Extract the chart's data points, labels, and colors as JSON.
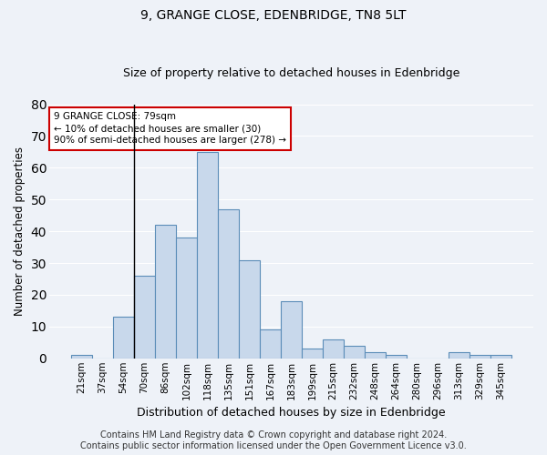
{
  "title": "9, GRANGE CLOSE, EDENBRIDGE, TN8 5LT",
  "subtitle": "Size of property relative to detached houses in Edenbridge",
  "xlabel": "Distribution of detached houses by size in Edenbridge",
  "ylabel": "Number of detached properties",
  "categories": [
    "21sqm",
    "37sqm",
    "54sqm",
    "70sqm",
    "86sqm",
    "102sqm",
    "118sqm",
    "135sqm",
    "151sqm",
    "167sqm",
    "183sqm",
    "199sqm",
    "215sqm",
    "232sqm",
    "248sqm",
    "264sqm",
    "280sqm",
    "296sqm",
    "313sqm",
    "329sqm",
    "345sqm"
  ],
  "values": [
    1,
    0,
    13,
    26,
    42,
    38,
    65,
    47,
    31,
    9,
    18,
    3,
    6,
    4,
    2,
    1,
    0,
    0,
    2,
    1,
    1
  ],
  "bar_color": "#c8d8eb",
  "bar_edge_color": "#5b8db8",
  "annotation_line1": "9 GRANGE CLOSE: 79sqm",
  "annotation_line2": "← 10% of detached houses are smaller (30)",
  "annotation_line3": "90% of semi-detached houses are larger (278) →",
  "annotation_box_color": "white",
  "annotation_box_edge_color": "#cc0000",
  "vline_x_index": 2.5,
  "ylim": [
    0,
    80
  ],
  "yticks": [
    0,
    10,
    20,
    30,
    40,
    50,
    60,
    70,
    80
  ],
  "background_color": "#eef2f8",
  "grid_color": "white",
  "title_fontsize": 10,
  "subtitle_fontsize": 9,
  "ylabel_fontsize": 8.5,
  "xlabel_fontsize": 9,
  "tick_fontsize": 7.5,
  "footer_text": "Contains HM Land Registry data © Crown copyright and database right 2024.\nContains public sector information licensed under the Open Government Licence v3.0.",
  "footer_fontsize": 7
}
